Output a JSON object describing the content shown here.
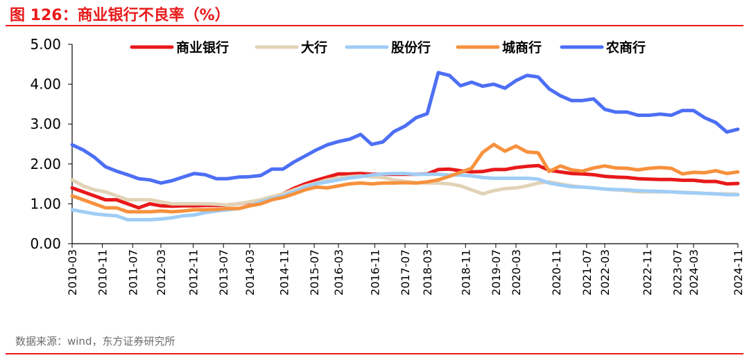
{
  "figure": {
    "title": "图 126：商业银行不良率（%）",
    "source": "数据来源：wind，东方证券研究所"
  },
  "chart_data": {
    "type": "line",
    "title": "图 126：商业银行不良率（%）",
    "xlabel": "",
    "ylabel": "",
    "ylim": [
      0,
      5
    ],
    "yticks": [
      "0.00",
      "1.00",
      "2.00",
      "3.00",
      "4.00",
      "5.00"
    ],
    "grid": false,
    "legend_position": "top",
    "x_tick_labels": [
      "2010-03",
      "2010-11",
      "2011-07",
      "2012-03",
      "2012-11",
      "2013-07",
      "2014-03",
      "2014-11",
      "2015-07",
      "2016-03",
      "2016-11",
      "2017-07",
      "2018-03",
      "2018-11",
      "2019-07",
      "2020-03",
      "2020-11",
      "2021-07",
      "2022-03",
      "2022-11",
      "2023-07",
      "2024-03",
      "2024-11"
    ],
    "categories": [
      "2010-03",
      "2010-06",
      "2010-09",
      "2010-12",
      "2011-03",
      "2011-06",
      "2011-09",
      "2011-12",
      "2012-03",
      "2012-06",
      "2012-09",
      "2012-12",
      "2013-03",
      "2013-06",
      "2013-09",
      "2013-12",
      "2014-03",
      "2014-06",
      "2014-09",
      "2014-12",
      "2015-03",
      "2015-06",
      "2015-09",
      "2015-12",
      "2016-03",
      "2016-06",
      "2016-09",
      "2016-12",
      "2017-03",
      "2017-06",
      "2017-09",
      "2017-12",
      "2018-03",
      "2018-06",
      "2018-09",
      "2018-12",
      "2019-03",
      "2019-06",
      "2019-09",
      "2019-12",
      "2020-03",
      "2020-06",
      "2020-09",
      "2020-12",
      "2021-03",
      "2021-06",
      "2021-09",
      "2021-12",
      "2022-03",
      "2022-06",
      "2022-09",
      "2022-12",
      "2023-03",
      "2023-06",
      "2023-09",
      "2023-12",
      "2024-03",
      "2024-06",
      "2024-09",
      "2024-12",
      "2025-03"
    ],
    "series": [
      {
        "name": "商业银行",
        "color": "#e8191a",
        "values": [
          1.4,
          1.3,
          1.2,
          1.1,
          1.1,
          1.0,
          0.9,
          1.0,
          0.95,
          0.94,
          0.95,
          0.95,
          0.96,
          0.96,
          0.97,
          1.0,
          1.04,
          1.08,
          1.16,
          1.25,
          1.39,
          1.5,
          1.59,
          1.67,
          1.75,
          1.75,
          1.76,
          1.74,
          1.74,
          1.74,
          1.74,
          1.74,
          1.75,
          1.86,
          1.87,
          1.83,
          1.8,
          1.81,
          1.86,
          1.86,
          1.91,
          1.94,
          1.96,
          1.84,
          1.8,
          1.76,
          1.75,
          1.73,
          1.69,
          1.67,
          1.66,
          1.63,
          1.62,
          1.61,
          1.61,
          1.59,
          1.59,
          1.56,
          1.56,
          1.5,
          1.51
        ]
      },
      {
        "name": "大行",
        "color": "#e2d3b7",
        "values": [
          1.6,
          1.45,
          1.35,
          1.3,
          1.2,
          1.1,
          1.1,
          1.1,
          1.05,
          1.0,
          1.0,
          1.0,
          1.0,
          0.99,
          0.97,
          1.0,
          1.05,
          1.1,
          1.18,
          1.25,
          1.35,
          1.45,
          1.52,
          1.6,
          1.65,
          1.68,
          1.7,
          1.68,
          1.66,
          1.6,
          1.56,
          1.53,
          1.52,
          1.52,
          1.5,
          1.45,
          1.35,
          1.25,
          1.33,
          1.38,
          1.4,
          1.45,
          1.52,
          1.55,
          1.5,
          1.45,
          1.42,
          1.4,
          1.37,
          1.35,
          1.33,
          1.3,
          1.3,
          1.3,
          1.3,
          1.29,
          1.28,
          1.26,
          1.25,
          1.25,
          1.24
        ]
      },
      {
        "name": "股份行",
        "color": "#9fcdf6",
        "values": [
          0.85,
          0.8,
          0.75,
          0.72,
          0.7,
          0.6,
          0.6,
          0.6,
          0.62,
          0.65,
          0.7,
          0.72,
          0.78,
          0.82,
          0.85,
          0.88,
          0.95,
          1.05,
          1.13,
          1.2,
          1.3,
          1.42,
          1.5,
          1.55,
          1.6,
          1.65,
          1.68,
          1.72,
          1.75,
          1.76,
          1.76,
          1.74,
          1.74,
          1.74,
          1.72,
          1.72,
          1.7,
          1.66,
          1.64,
          1.64,
          1.64,
          1.64,
          1.62,
          1.52,
          1.47,
          1.43,
          1.42,
          1.4,
          1.37,
          1.36,
          1.35,
          1.33,
          1.32,
          1.31,
          1.3,
          1.28,
          1.27,
          1.26,
          1.25,
          1.23,
          1.23
        ]
      },
      {
        "name": "城商行",
        "color": "#f7913d",
        "values": [
          1.2,
          1.1,
          1.0,
          0.9,
          0.9,
          0.8,
          0.8,
          0.8,
          0.82,
          0.8,
          0.82,
          0.85,
          0.85,
          0.86,
          0.88,
          0.88,
          0.95,
          1.0,
          1.1,
          1.16,
          1.25,
          1.35,
          1.42,
          1.4,
          1.45,
          1.5,
          1.52,
          1.5,
          1.52,
          1.52,
          1.53,
          1.52,
          1.55,
          1.6,
          1.69,
          1.79,
          1.89,
          2.29,
          2.49,
          2.32,
          2.45,
          2.3,
          2.28,
          1.81,
          1.95,
          1.85,
          1.82,
          1.9,
          1.95,
          1.9,
          1.89,
          1.85,
          1.89,
          1.91,
          1.89,
          1.75,
          1.79,
          1.78,
          1.83,
          1.76,
          1.8
        ]
      },
      {
        "name": "农商行",
        "color": "#4d6ff5",
        "values": [
          2.48,
          2.35,
          2.17,
          1.93,
          1.82,
          1.73,
          1.63,
          1.6,
          1.52,
          1.58,
          1.67,
          1.76,
          1.73,
          1.63,
          1.63,
          1.67,
          1.68,
          1.71,
          1.87,
          1.87,
          2.05,
          2.2,
          2.35,
          2.48,
          2.56,
          2.62,
          2.74,
          2.49,
          2.55,
          2.81,
          2.95,
          3.16,
          3.26,
          4.29,
          4.22,
          3.96,
          4.05,
          3.95,
          4.0,
          3.9,
          4.09,
          4.22,
          4.18,
          3.88,
          3.71,
          3.59,
          3.59,
          3.63,
          3.37,
          3.3,
          3.3,
          3.22,
          3.22,
          3.25,
          3.22,
          3.34,
          3.34,
          3.16,
          3.04,
          2.8,
          2.87
        ]
      }
    ]
  }
}
